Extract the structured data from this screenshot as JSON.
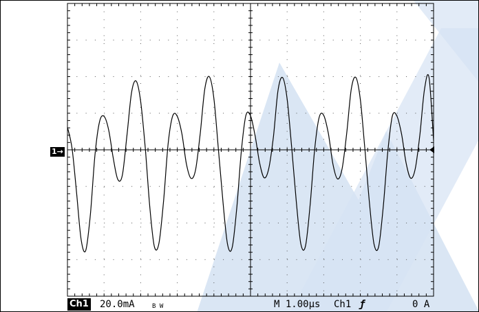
{
  "watermark_color": "#d6e3f3",
  "status": {
    "channel": "Ch1",
    "volts_per_div": "20.0mA",
    "bw_limit": "B W",
    "timebase": "M 1.00µs",
    "trigger_source": "Ch1",
    "trigger_slope": "ƒ",
    "trigger_level": "0 A"
  },
  "channel_marker": "1→",
  "chart_data": {
    "type": "line",
    "title": "",
    "xlabel": "",
    "ylabel": "",
    "x_units": "µs",
    "y_units": "mA",
    "xlim": [
      0,
      10
    ],
    "ylim": [
      -80,
      80
    ],
    "grid": true,
    "series": [
      {
        "x": [
          0.0,
          0.125,
          0.25,
          0.375,
          0.5,
          0.625,
          0.75,
          0.875,
          1.0,
          1.125,
          1.25,
          1.375,
          1.5,
          1.625,
          1.75,
          1.875,
          2.0,
          2.125,
          2.25,
          2.375,
          2.5,
          2.625,
          2.75,
          2.875,
          3.0,
          3.125,
          3.25,
          3.375,
          3.5,
          3.625,
          3.75,
          3.875,
          4.0,
          4.125,
          4.25,
          4.375,
          4.5,
          4.625,
          4.75,
          4.875,
          5.0,
          5.125,
          5.25,
          5.375,
          5.5,
          5.625,
          5.75,
          5.875,
          6.0,
          6.125,
          6.25,
          6.375,
          6.5,
          6.625,
          6.75,
          6.875,
          7.0,
          7.125,
          7.25,
          7.375,
          7.5,
          7.625,
          7.75,
          7.875,
          8.0,
          8.125,
          8.25,
          8.375,
          8.5,
          8.625,
          8.75,
          8.875,
          9.0,
          9.125,
          9.25,
          9.375,
          9.5,
          9.625,
          9.75,
          9.875,
          10.0
        ],
        "y": [
          12.4,
          0.8,
          -23.6,
          -49.3,
          -55.0,
          -35.5,
          -3.2,
          15.3,
          18.3,
          11.0,
          -4.4,
          -16.2,
          -13.8,
          7.7,
          31.2,
          37.6,
          26.4,
          0.9,
          -31.4,
          -52.9,
          -51.0,
          -27.9,
          3.3,
          18.5,
          18.3,
          8.8,
          -7.8,
          -15.6,
          -10.9,
          8.7,
          33.1,
          40.0,
          28.0,
          0.0,
          -28.9,
          -52.0,
          -53.3,
          -31.6,
          -0.6,
          18.8,
          18.6,
          7.8,
          -7.3,
          -15.3,
          -10.1,
          7.1,
          32.3,
          39.5,
          27.8,
          1.0,
          -28.2,
          -51.4,
          -52.7,
          -31.0,
          -0.2,
          17.8,
          18.8,
          9.0,
          -7.7,
          -15.9,
          -10.5,
          8.5,
          32.9,
          39.6,
          27.4,
          0.0,
          -29.3,
          -51.6,
          -52.9,
          -31.1,
          -1.0,
          18.5,
          18.4,
          8.6,
          -7.2,
          -15.5,
          -10.3,
          8.2,
          32.8,
          39.5,
          5.0
        ]
      }
    ]
  }
}
